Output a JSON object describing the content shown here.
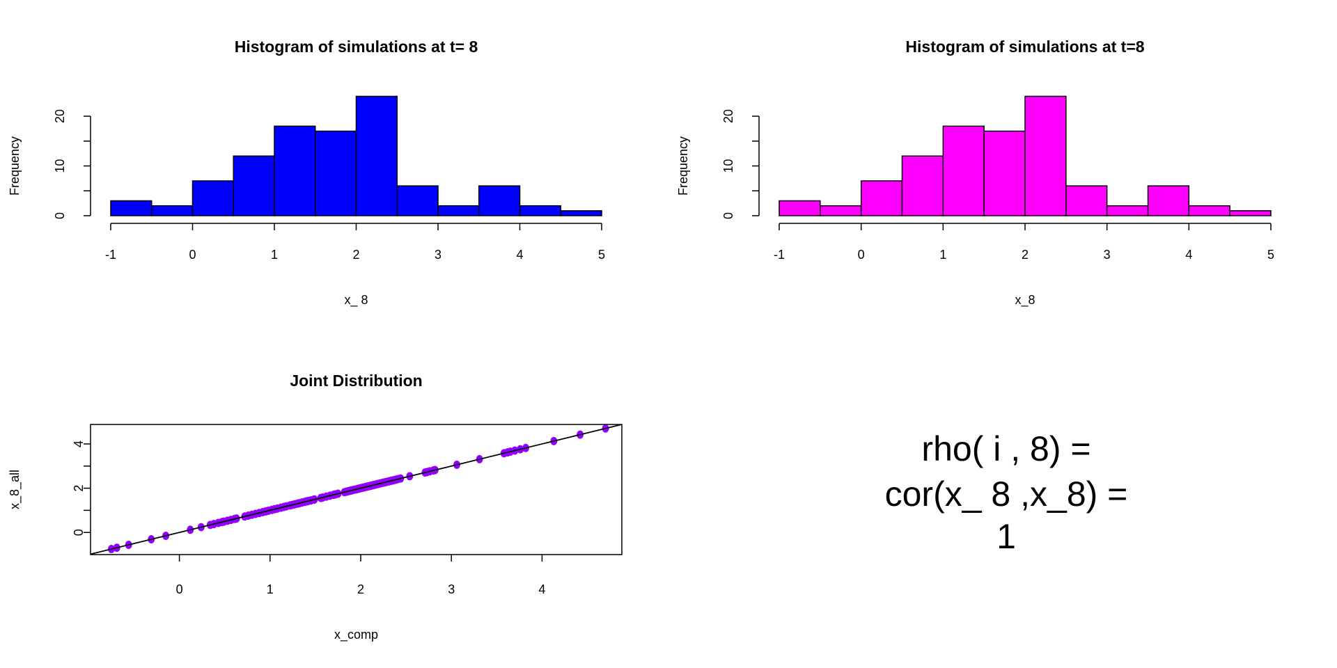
{
  "chart_data": [
    {
      "type": "bar",
      "title": "Histogram of simulations at t= 8",
      "xlabel": "x_ 8",
      "ylabel": "Frequency",
      "bin_edges": [
        -1,
        -0.5,
        0,
        0.5,
        1,
        1.5,
        2,
        2.5,
        3,
        3.5,
        4,
        4.5,
        5
      ],
      "values": [
        3,
        2,
        7,
        12,
        18,
        17,
        24,
        6,
        2,
        6,
        2,
        1
      ],
      "color": "#0000FF",
      "xlim": [
        -1,
        5
      ],
      "ylim": [
        0,
        24
      ],
      "xticks": [
        -1,
        0,
        1,
        2,
        3,
        4,
        5
      ],
      "yticks": [
        0,
        5,
        10,
        15,
        20
      ],
      "ytick_labels": [
        "0",
        "10",
        "20"
      ],
      "ytick_label_values": [
        0,
        10,
        20
      ]
    },
    {
      "type": "bar",
      "title": "Histogram of simulations at t=8",
      "xlabel": "x_8",
      "ylabel": "Frequency",
      "bin_edges": [
        -1,
        -0.5,
        0,
        0.5,
        1,
        1.5,
        2,
        2.5,
        3,
        3.5,
        4,
        4.5,
        5
      ],
      "values": [
        3,
        2,
        7,
        12,
        18,
        17,
        24,
        6,
        2,
        6,
        2,
        1
      ],
      "color": "#FF00FF",
      "xlim": [
        -1,
        5
      ],
      "ylim": [
        0,
        24
      ],
      "xticks": [
        -1,
        0,
        1,
        2,
        3,
        4,
        5
      ],
      "yticks": [
        0,
        5,
        10,
        15,
        20
      ],
      "ytick_labels": [
        "0",
        "10",
        "20"
      ],
      "ytick_label_values": [
        0,
        10,
        20
      ]
    },
    {
      "type": "scatter",
      "title": "Joint Distribution",
      "xlabel": "x_comp",
      "ylabel": "x_8_all",
      "color": "#9400FF",
      "xlim": [
        -0.98,
        4.88
      ],
      "ylim": [
        -1.0,
        4.88
      ],
      "xticks": [
        0,
        1,
        2,
        3,
        4
      ],
      "yticks": [
        0,
        1,
        2,
        3,
        4
      ],
      "ytick_labels": [
        "0",
        "2",
        "4"
      ],
      "ytick_label_values": [
        0,
        2,
        4
      ],
      "reference_line": {
        "intercept": 0,
        "slope": 1
      },
      "x": [
        -0.75,
        -0.69,
        -0.56,
        -0.31,
        -0.15,
        0.12,
        0.24,
        0.34,
        0.38,
        0.43,
        0.47,
        0.49,
        0.53,
        0.57,
        0.61,
        0.63,
        0.72,
        0.76,
        0.8,
        0.84,
        0.88,
        0.92,
        0.95,
        0.98,
        1.02,
        1.05,
        1.08,
        1.12,
        1.15,
        1.18,
        1.22,
        1.24,
        1.27,
        1.3,
        1.32,
        1.35,
        1.38,
        1.4,
        1.42,
        1.45,
        1.48,
        1.49,
        1.56,
        1.58,
        1.62,
        1.66,
        1.7,
        1.72,
        1.75,
        1.82,
        1.84,
        1.86,
        1.88,
        1.9,
        1.92,
        1.94,
        1.96,
        1.97,
        1.99,
        2.01,
        2.03,
        2.04,
        2.06,
        2.08,
        2.09,
        2.11,
        2.13,
        2.14,
        2.16,
        2.18,
        2.19,
        2.21,
        2.23,
        2.25,
        2.27,
        2.29,
        2.31,
        2.33,
        2.35,
        2.37,
        2.39,
        2.41,
        2.44,
        2.54,
        2.71,
        2.73,
        2.76,
        2.8,
        2.82,
        3.06,
        3.31,
        3.58,
        3.62,
        3.65,
        3.7,
        3.76,
        3.82,
        4.13,
        4.42,
        4.7
      ],
      "y": [
        -0.75,
        -0.69,
        -0.56,
        -0.31,
        -0.15,
        0.12,
        0.24,
        0.34,
        0.38,
        0.43,
        0.47,
        0.49,
        0.53,
        0.57,
        0.61,
        0.63,
        0.72,
        0.76,
        0.8,
        0.84,
        0.88,
        0.92,
        0.95,
        0.98,
        1.02,
        1.05,
        1.08,
        1.12,
        1.15,
        1.18,
        1.22,
        1.24,
        1.27,
        1.3,
        1.32,
        1.35,
        1.38,
        1.4,
        1.42,
        1.45,
        1.48,
        1.49,
        1.56,
        1.58,
        1.62,
        1.66,
        1.7,
        1.72,
        1.75,
        1.82,
        1.84,
        1.86,
        1.88,
        1.9,
        1.92,
        1.94,
        1.96,
        1.97,
        1.99,
        2.01,
        2.03,
        2.04,
        2.06,
        2.08,
        2.09,
        2.11,
        2.13,
        2.14,
        2.16,
        2.18,
        2.19,
        2.21,
        2.23,
        2.25,
        2.27,
        2.29,
        2.31,
        2.33,
        2.35,
        2.37,
        2.39,
        2.41,
        2.44,
        2.54,
        2.71,
        2.73,
        2.76,
        2.8,
        2.82,
        3.06,
        3.31,
        3.58,
        3.62,
        3.65,
        3.7,
        3.76,
        3.82,
        4.13,
        4.42,
        4.7
      ]
    }
  ],
  "correlation_text": {
    "line1": "rho( i , 8) =",
    "line2": "cor(x_ 8 ,x_8) =",
    "line3": "1"
  }
}
